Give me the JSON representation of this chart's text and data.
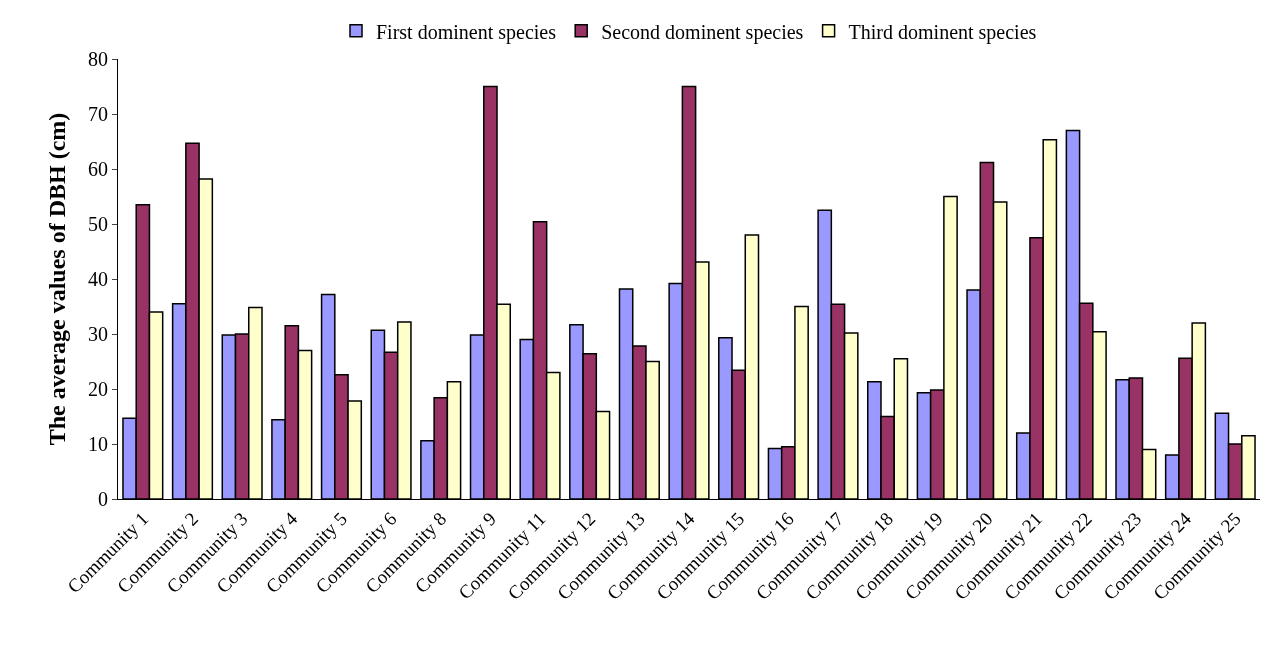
{
  "chart_data": {
    "type": "bar",
    "ylabel": "The average values of DBH (cm)",
    "categories": [
      "Community 1",
      "Community 2",
      "Community 3",
      "Community 4",
      "Community 5",
      "Community 6",
      "Community 8",
      "Community 9",
      "Community 11",
      "Community 12",
      "Community 13",
      "Community 14",
      "Community 15",
      "Community 16",
      "Community 17",
      "Community 18",
      "Community 19",
      "Community 20",
      "Community 21",
      "Community 22",
      "Community 23",
      "Community 24",
      "Community 25"
    ],
    "series": [
      {
        "name": "First dominent species",
        "color": "#9999ff",
        "values": [
          14.7,
          35.5,
          29.8,
          14.4,
          37.2,
          30.7,
          10.6,
          29.8,
          29,
          31.7,
          38.2,
          39.2,
          29.3,
          9.2,
          52.5,
          21.3,
          19.3,
          38,
          12,
          67,
          21.7,
          8,
          15.6
        ]
      },
      {
        "name": "Second dominent species",
        "color": "#993366",
        "values": [
          53.5,
          64.7,
          30,
          31.5,
          22.6,
          26.7,
          18.4,
          75,
          50.4,
          26.4,
          27.8,
          75,
          23.4,
          9.5,
          35.4,
          15,
          19.8,
          61.2,
          47.5,
          35.6,
          22,
          25.6,
          10
        ]
      },
      {
        "name": "Third dominent species",
        "color": "#ffffcc",
        "values": [
          34,
          58.2,
          34.8,
          27,
          17.8,
          32.2,
          21.3,
          35.4,
          23,
          15.9,
          25,
          43.1,
          48,
          35,
          30.2,
          25.5,
          55,
          54,
          65.3,
          30.4,
          9,
          32,
          11.5
        ]
      }
    ],
    "ylim": [
      0,
      80
    ],
    "yticks": [
      0,
      10,
      20,
      30,
      40,
      50,
      60,
      70,
      80
    ],
    "legend": "top"
  }
}
